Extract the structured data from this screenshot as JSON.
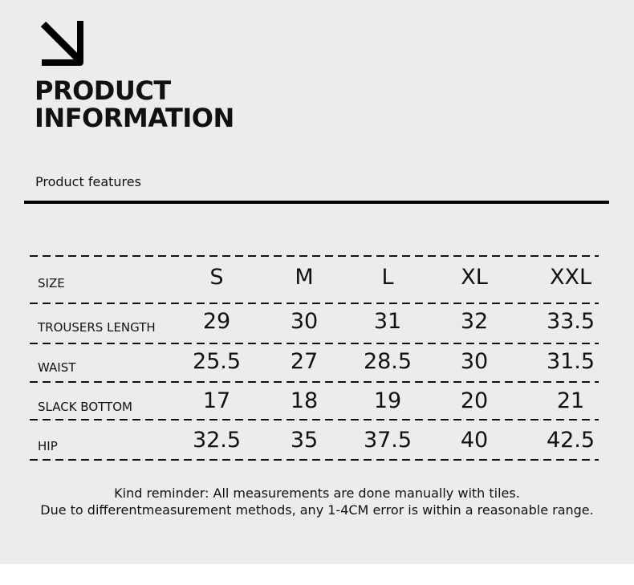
{
  "header": {
    "icon": "arrow-down-right-icon",
    "title_line1": "PRODUCT",
    "title_line2": "INFORMATION",
    "subtitle": "Product features"
  },
  "table": {
    "header": {
      "label": "SIZE",
      "values": [
        "S",
        "M",
        "L",
        "XL",
        "XXL"
      ]
    },
    "rows": [
      {
        "label": "TROUSERS LENGTH",
        "values": [
          "29",
          "30",
          "31",
          "32",
          "33.5"
        ]
      },
      {
        "label": "WAIST",
        "values": [
          "25.5",
          "27",
          "28.5",
          "30",
          "31.5"
        ]
      },
      {
        "label": "SLACK BOTTOM",
        "values": [
          "17",
          "18",
          "19",
          "20",
          "21"
        ]
      },
      {
        "label": "HIP",
        "values": [
          "32.5",
          "35",
          "37.5",
          "40",
          "42.5"
        ]
      }
    ]
  },
  "note": {
    "line1": "Kind reminder: All measurements are done manually with tiles.",
    "line2": "Due to differentmeasurement methods, any 1-4CM error is within a reasonable range."
  },
  "colors": {
    "background": "#ececea",
    "text": "#111111"
  }
}
